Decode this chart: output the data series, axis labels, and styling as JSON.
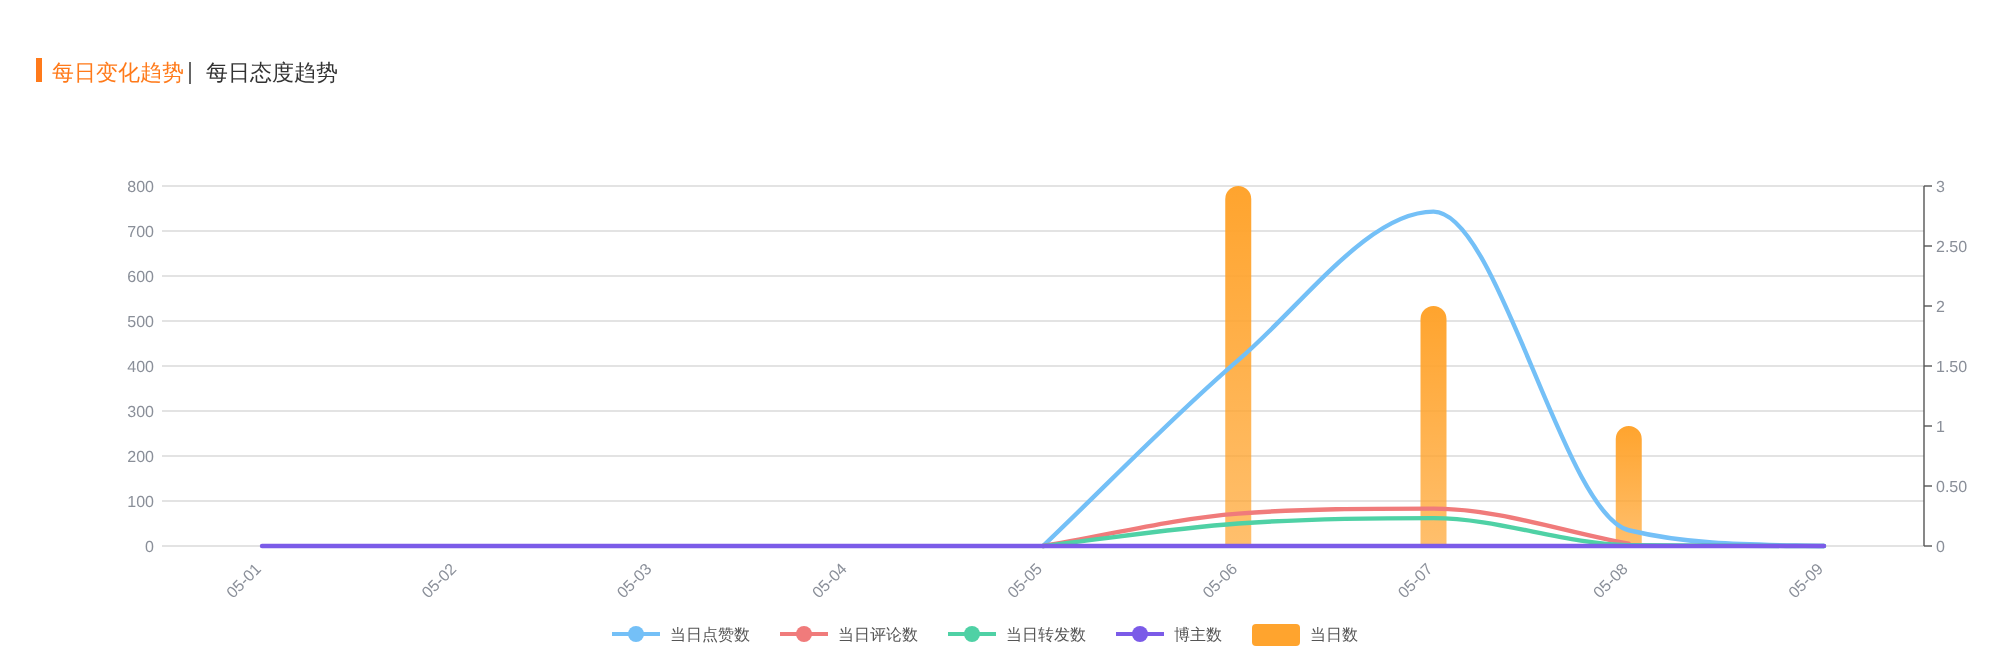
{
  "chart_data": {
    "type": "line",
    "title": "每日变化趋势",
    "subtitle": "每日态度趋势",
    "categories": [
      "05-01",
      "05-02",
      "05-03",
      "05-04",
      "05-05",
      "05-06",
      "05-07",
      "05-08",
      "05-09"
    ],
    "ylim": [
      0,
      800
    ],
    "yticks": [
      0,
      100,
      200,
      300,
      400,
      500,
      600,
      700,
      800
    ],
    "y2lim": [
      0,
      3
    ],
    "y2ticks": [
      0,
      {
        "value": 0.5,
        "label": "0.50"
      },
      1,
      {
        "value": 1.5,
        "label": "1.50"
      },
      2,
      {
        "value": 2.5,
        "label": "2.50"
      },
      3
    ],
    "grid": "y",
    "legend": "bottom",
    "series": [
      {
        "name": "当日点赞数",
        "color": "#74c0f7",
        "values": [
          null,
          null,
          null,
          null,
          0,
          413,
          743,
          35,
          0
        ]
      },
      {
        "name": "当日评论数",
        "color": "#f07b7b",
        "values": [
          null,
          null,
          null,
          null,
          0,
          72,
          83,
          5,
          null
        ]
      },
      {
        "name": "当日转发数",
        "color": "#4fd1a5",
        "values": [
          null,
          null,
          null,
          null,
          0,
          50,
          62,
          2,
          0
        ]
      },
      {
        "name": "博主数",
        "color": "#7b5be8",
        "values": [
          0,
          0,
          0,
          0,
          0,
          0,
          0,
          0,
          0
        ]
      },
      {
        "name": "当日数",
        "type": "bar",
        "axis": "y2",
        "color": "#ffa42e",
        "values": [
          0,
          0,
          0,
          0,
          0,
          3,
          2,
          1,
          0
        ]
      }
    ]
  }
}
